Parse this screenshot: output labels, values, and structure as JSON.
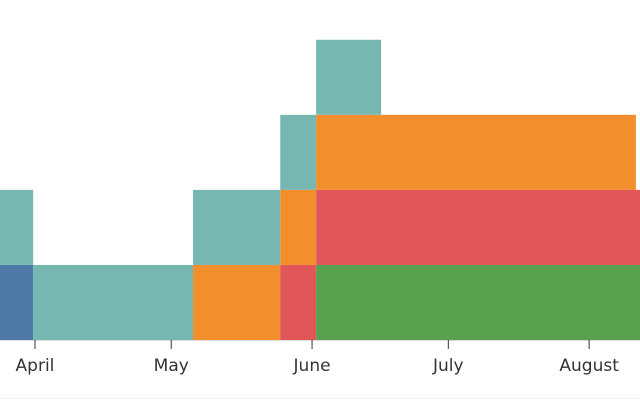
{
  "chart_data": {
    "type": "interval",
    "xlim": [
      -7.7,
      133.2
    ],
    "xticks": [
      {
        "value": 0,
        "label": "April"
      },
      {
        "value": 30,
        "label": "May"
      },
      {
        "value": 61,
        "label": "June"
      },
      {
        "value": 91,
        "label": "July"
      },
      {
        "value": 122,
        "label": "August"
      }
    ],
    "ylim": [
      0,
      4.53
    ],
    "intervals": [
      {
        "x0": -7.7,
        "x1": -0.4,
        "y0": 0,
        "y1": 1,
        "color": "#4e79a7"
      },
      {
        "x0": -0.4,
        "x1": 34.8,
        "y0": 0,
        "y1": 1,
        "color": "#76b7b2"
      },
      {
        "x0": 34.8,
        "x1": 54,
        "y0": 0,
        "y1": 1,
        "color": "#f28e2b"
      },
      {
        "x0": 54,
        "x1": 61.9,
        "y0": 0,
        "y1": 1,
        "color": "#e15759"
      },
      {
        "x0": 61.9,
        "x1": 133.2,
        "y0": 0,
        "y1": 1,
        "color": "#59a14f"
      },
      {
        "x0": -7.7,
        "x1": -0.4,
        "y0": 1,
        "y1": 2,
        "color": "#76b7b2"
      },
      {
        "x0": 34.8,
        "x1": 54,
        "y0": 1,
        "y1": 2,
        "color": "#76b7b2"
      },
      {
        "x0": 54,
        "x1": 61.9,
        "y0": 1,
        "y1": 2,
        "color": "#f28e2b"
      },
      {
        "x0": 61.9,
        "x1": 133.2,
        "y0": 1,
        "y1": 2,
        "color": "#e15759"
      },
      {
        "x0": 54,
        "x1": 61.9,
        "y0": 2,
        "y1": 3,
        "color": "#76b7b2"
      },
      {
        "x0": 61.9,
        "x1": 132.3,
        "y0": 2,
        "y1": 3,
        "color": "#f28e2b"
      },
      {
        "x0": 61.9,
        "x1": 76.2,
        "y0": 3,
        "y1": 4,
        "color": "#76b7b2"
      }
    ]
  }
}
